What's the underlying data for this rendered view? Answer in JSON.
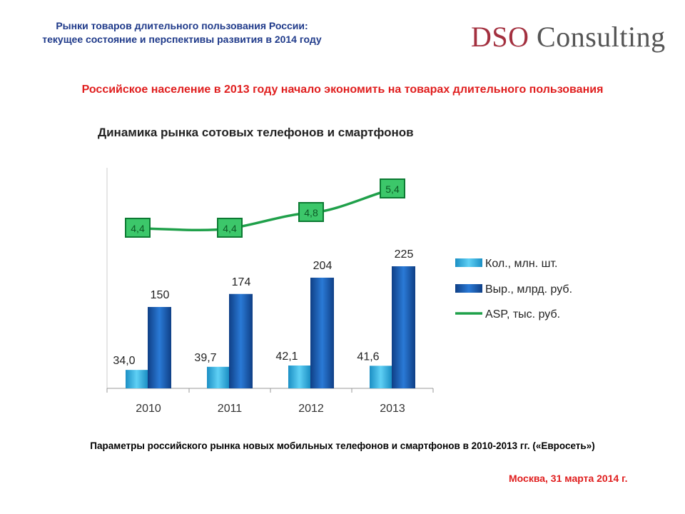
{
  "header": {
    "line1": "Рынки товаров длительного пользования России:",
    "line2": "текущее состояние и перспективы развития в 2014 году"
  },
  "logo": {
    "part1": "DSO",
    "part2": " Consulting"
  },
  "subtitle": "Российское население в 2013 году начало экономить на товарах длительного пользования",
  "caption": "Параметры российского рынка новых мобильных телефонов и смартфонов в 2010-2013 гг. («Евросеть»)",
  "footer": "Москва, 31 марта 2014 г.",
  "colors": {
    "light_bar": "#2fb3e6",
    "dark_bar": "#1a5fb4",
    "line": "#1fa04a",
    "accent_red": "#e01e1e",
    "header_blue": "#1f3a8a"
  },
  "chart_data": {
    "type": "bar+line",
    "title": "Динамика рынка сотовых телефонов и смартфонов",
    "categories": [
      "2010",
      "2011",
      "2012",
      "2013"
    ],
    "series": [
      {
        "name": "Кол., млн. шт.",
        "type": "bar",
        "values": [
          34.0,
          39.7,
          42.1,
          41.6
        ],
        "labels": [
          "34,0",
          "39,7",
          "42,1",
          "41,6"
        ]
      },
      {
        "name": "Выр., млрд. руб.",
        "type": "bar",
        "values": [
          150,
          174,
          204,
          225
        ],
        "labels": [
          "150",
          "174",
          "204",
          "225"
        ]
      },
      {
        "name": "ASP, тыс. руб.",
        "type": "line",
        "values": [
          4.4,
          4.4,
          4.8,
          5.4
        ],
        "labels": [
          "4,4",
          "4,4",
          "4,8",
          "5,4"
        ]
      }
    ],
    "legend": "right",
    "grid": false
  }
}
